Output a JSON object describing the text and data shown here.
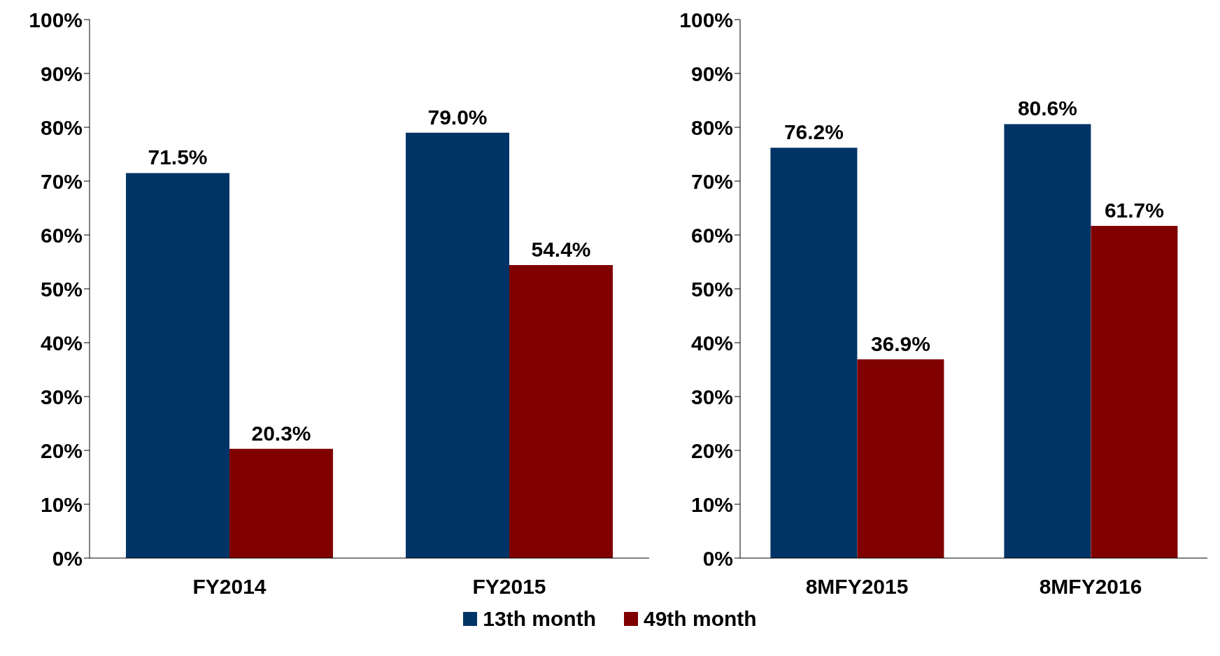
{
  "chart_data": [
    {
      "type": "bar",
      "categories": [
        "FY2014",
        "FY2015"
      ],
      "ylim": [
        0,
        100
      ],
      "yticks": [
        {
          "value": 0,
          "label": "0%"
        },
        {
          "value": 10,
          "label": "10%"
        },
        {
          "value": 20,
          "label": "20%"
        },
        {
          "value": 30,
          "label": "30%"
        },
        {
          "value": 40,
          "label": "40%"
        },
        {
          "value": 50,
          "label": "50%"
        },
        {
          "value": 60,
          "label": "60%"
        },
        {
          "value": 70,
          "label": "70%"
        },
        {
          "value": 80,
          "label": "80%"
        },
        {
          "value": 90,
          "label": "90%"
        },
        {
          "value": 100,
          "label": "100%"
        }
      ],
      "grid": false,
      "legend": "bottom",
      "series": [
        {
          "name": "13th month",
          "color": "#003366",
          "values": [
            71.5,
            79.0
          ],
          "value_labels": [
            "71.5%",
            "79.0%"
          ]
        },
        {
          "name": "49th month",
          "color": "#800000",
          "values": [
            20.3,
            54.4
          ],
          "value_labels": [
            "20.3%",
            "54.4%"
          ]
        }
      ]
    },
    {
      "type": "bar",
      "categories": [
        "8MFY2015",
        "8MFY2016"
      ],
      "ylim": [
        0,
        100
      ],
      "yticks": [
        {
          "value": 0,
          "label": "0%"
        },
        {
          "value": 10,
          "label": "10%"
        },
        {
          "value": 20,
          "label": "20%"
        },
        {
          "value": 30,
          "label": "30%"
        },
        {
          "value": 40,
          "label": "40%"
        },
        {
          "value": 50,
          "label": "50%"
        },
        {
          "value": 60,
          "label": "60%"
        },
        {
          "value": 70,
          "label": "70%"
        },
        {
          "value": 80,
          "label": "80%"
        },
        {
          "value": 90,
          "label": "90%"
        },
        {
          "value": 100,
          "label": "100%"
        }
      ],
      "grid": false,
      "series": [
        {
          "color": "#003366",
          "values": [
            76.2,
            80.6
          ],
          "value_labels": [
            "76.2%",
            "80.6%"
          ]
        },
        {
          "color": "#800000",
          "values": [
            36.9,
            61.7
          ],
          "value_labels": [
            "36.9%",
            "61.7%"
          ]
        }
      ]
    }
  ]
}
